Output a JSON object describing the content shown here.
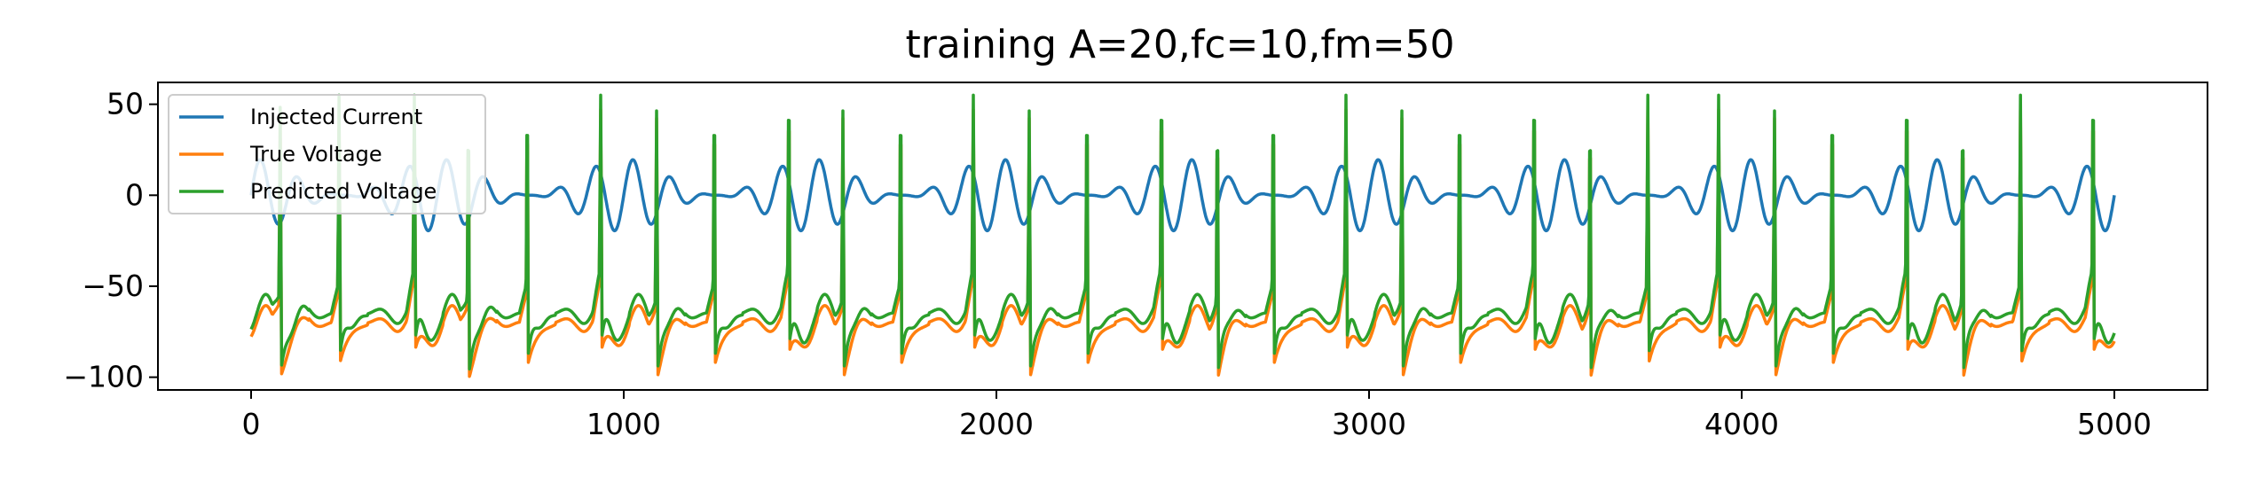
{
  "chart_data": {
    "type": "line",
    "title": "training A=20,fc=10,fm=50",
    "xlabel": "",
    "ylabel": "",
    "xlim": [
      -250,
      5250
    ],
    "ylim": [
      -107,
      62
    ],
    "xticks": [
      0,
      1000,
      2000,
      3000,
      4000,
      5000
    ],
    "yticks": [
      50,
      0,
      -50,
      -100
    ],
    "ytick_labels": [
      "50",
      "0",
      "−50",
      "−100"
    ],
    "grid": false,
    "legend_position": "top-left",
    "series": [
      {
        "name": "Injected Current",
        "color": "#1f77b4"
      },
      {
        "name": "True Voltage",
        "color": "#ff7f0e"
      },
      {
        "name": "Predicted Voltage",
        "color": "#2ca02c"
      }
    ],
    "spike_times": [
      75,
      233,
      435,
      580,
      738,
      935,
      1085,
      1240,
      1440,
      1585,
      1740,
      1935,
      2085,
      2240,
      2440,
      2590,
      2740,
      2935,
      3085,
      3240,
      3440,
      3590,
      3745,
      3935,
      4085,
      4240,
      4440,
      4590,
      4745,
      4940
    ]
  }
}
